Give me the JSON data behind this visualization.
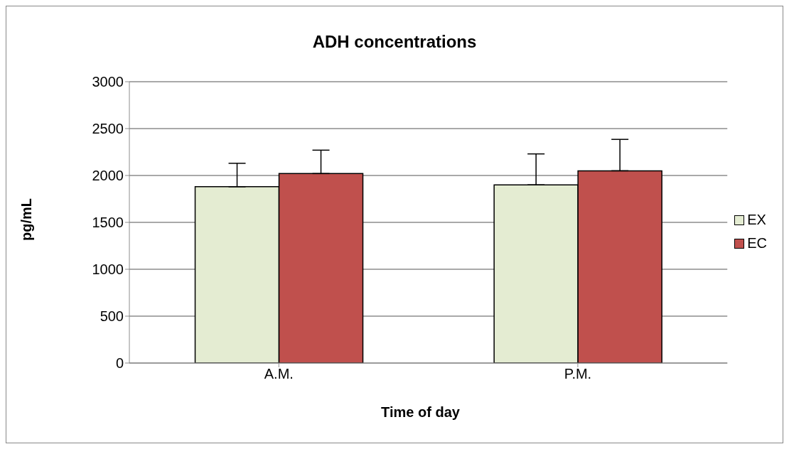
{
  "chart_data": {
    "type": "bar",
    "title": "ADH concentrations",
    "xlabel": "Time of day",
    "ylabel": "pg/mL",
    "categories": [
      "A.M.",
      "P.M."
    ],
    "series": [
      {
        "name": "EX",
        "color": "#e4ecd2",
        "values": [
          1880,
          1900
        ],
        "errors": [
          [
            1880,
            2130
          ],
          [
            1900,
            2230
          ]
        ]
      },
      {
        "name": "EC",
        "color": "#c0504d",
        "values": [
          2020,
          2050
        ],
        "errors": [
          [
            2020,
            2270
          ],
          [
            2050,
            2385
          ]
        ]
      }
    ],
    "ylim": [
      0,
      3000
    ],
    "yticks": [
      0,
      500,
      1000,
      1500,
      2000,
      2500,
      3000
    ],
    "grid": "y",
    "legend": "right"
  }
}
